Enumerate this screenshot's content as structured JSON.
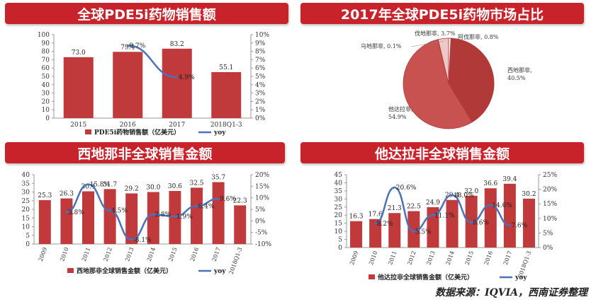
{
  "footer": {
    "source": "数据来源：IQVIA，西南证券整理"
  },
  "panels": [
    {
      "title": "全球PDE5i药物销售额"
    },
    {
      "title": "2017年全球PDE5i药物市场占比"
    },
    {
      "title": "西地那非全球销售金额"
    },
    {
      "title": "他达拉非全球销售金额"
    }
  ],
  "colors": {
    "bar": "#c0393b",
    "line": "#4a72b8",
    "banner": "#c8232a",
    "pie_dark": "#b13a38",
    "pie_mid": "#c85250",
    "pie_light": "#ecc8c8"
  },
  "chart_data": [
    {
      "type": "bar",
      "title": "",
      "categories": [
        "2015",
        "2016",
        "2017",
        "2018Q1-3"
      ],
      "series": [
        {
          "name": "PDE5i药物销售额（亿美元）",
          "type": "bar",
          "values": [
            73.0,
            79.4,
            83.2,
            55.1
          ],
          "labels": [
            "73.0",
            "79.4",
            "83.2",
            "55.1"
          ]
        },
        {
          "name": "yoy",
          "type": "line",
          "axis": "right",
          "values": [
            null,
            8.7,
            4.9,
            null
          ],
          "labels": [
            "",
            "8.7%",
            "4.9%",
            ""
          ]
        }
      ],
      "ylim": [
        0,
        100
      ],
      "y2lim": [
        0,
        10
      ],
      "yticks": [
        "0",
        "10",
        "20",
        "30",
        "40",
        "50",
        "60",
        "70",
        "80",
        "90",
        "100"
      ],
      "y2ticks": [
        "0%",
        "1%",
        "2%",
        "3%",
        "4%",
        "5%",
        "6%",
        "7%",
        "8%",
        "9%",
        "10%"
      ]
    },
    {
      "type": "pie",
      "slices": [
        {
          "label": "西地那非",
          "value": 40.5,
          "text": "西地那非,\n40.5%"
        },
        {
          "label": "他达拉非",
          "value": 54.9,
          "text": "他达拉非,\n54.9%"
        },
        {
          "label": "乌地那非",
          "value": 0.1,
          "text": "乌地那非, 0.1%"
        },
        {
          "label": "伐地那非",
          "value": 3.7,
          "text": "伐地那非, 3.7%"
        },
        {
          "label": "阿伐那非",
          "value": 0.8,
          "text": "阿伐那非, 0.8%"
        }
      ]
    },
    {
      "type": "bar",
      "title": "",
      "categories": [
        "2009",
        "2010",
        "2011",
        "2012",
        "2013",
        "2014",
        "2015",
        "2016",
        "2017",
        "2018Q1-3"
      ],
      "series": [
        {
          "name": "西地那非全球销售金额（亿美元）",
          "type": "bar",
          "values": [
            25.3,
            26.3,
            30.4,
            31.7,
            29.2,
            30.0,
            30.6,
            32.5,
            35.7,
            22.3
          ],
          "labels": [
            "25.3",
            "26.3",
            "30.4",
            "31.7",
            "29.2",
            "30.0",
            "30.6",
            "32.5",
            "35.7",
            "22.3"
          ]
        },
        {
          "name": "yoy",
          "type": "line",
          "axis": "right",
          "values": [
            null,
            3.8,
            15.8,
            4.5,
            -8.1,
            2.8,
            1.9,
            6.4,
            9.6,
            null
          ],
          "labels": [
            "",
            "3.8%",
            "15.8%",
            "4.5%",
            "-8.1%",
            "2.8%",
            "1.9%",
            "6.4%",
            "9.6%",
            ""
          ]
        }
      ],
      "ylim": [
        0,
        40
      ],
      "y2lim": [
        -10,
        20
      ],
      "yticks": [
        "0",
        "5",
        "10",
        "15",
        "20",
        "25",
        "30",
        "35",
        "40"
      ],
      "y2ticks": [
        "-10%",
        "-5%",
        "0%",
        "5%",
        "10%",
        "15%",
        "20%"
      ]
    },
    {
      "type": "bar",
      "title": "",
      "categories": [
        "2009",
        "2010",
        "2011",
        "2012",
        "2013",
        "2014",
        "2015",
        "2016",
        "2017",
        "2018Q1-3"
      ],
      "series": [
        {
          "name": "他达拉非全球销售金额（亿美元）",
          "type": "bar",
          "values": [
            16.3,
            17.6,
            21.3,
            22.5,
            24.9,
            29.4,
            32.0,
            36.6,
            39.4,
            30.2
          ],
          "labels": [
            "16.3",
            "17.6",
            "21.3",
            "22.5",
            "24.9",
            "29.4",
            "32.0",
            "36.6",
            "39.4",
            "30.2"
          ]
        },
        {
          "name": "yoy",
          "type": "line",
          "axis": "right",
          "values": [
            null,
            8.2,
            20.6,
            5.5,
            11.1,
            18.0,
            8.6,
            14.6,
            7.6,
            null
          ],
          "labels": [
            "",
            "8.2%",
            "20.6%",
            "5.5%",
            "11.1%",
            "18.0%",
            "8.6%",
            "14.6%",
            "7.6%",
            ""
          ]
        }
      ],
      "ylim": [
        0,
        45
      ],
      "y2lim": [
        0,
        25
      ],
      "yticks": [
        "0",
        "5",
        "10",
        "15",
        "20",
        "25",
        "30",
        "35",
        "40",
        "45"
      ],
      "y2ticks": [
        "0%",
        "5%",
        "10%",
        "15%",
        "20%",
        "25%"
      ]
    }
  ]
}
